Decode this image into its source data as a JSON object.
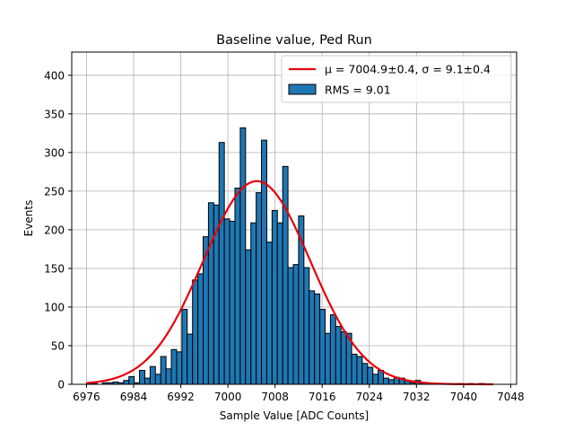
{
  "chart_data": {
    "type": "bar",
    "title": "Baseline value, Ped Run",
    "xlabel": "Sample Value [ADC Counts]",
    "ylabel": "Events",
    "xlim": [
      6973.5,
      7049
    ],
    "ylim": [
      0,
      430
    ],
    "grid": true,
    "legend_placement": "top-right",
    "xticks": [
      6976,
      6984,
      6992,
      7000,
      7008,
      7016,
      7024,
      7032,
      7040,
      7048
    ],
    "yticks": [
      0,
      50,
      100,
      150,
      200,
      250,
      300,
      350,
      400
    ],
    "bar_color": "#1f77b4",
    "bar_edge_color": "#000000",
    "fit_color": "#e8000b",
    "bin_width": 0.9,
    "bins": [
      {
        "x": 6976.0,
        "count": 1
      },
      {
        "x": 6976.9,
        "count": 1
      },
      {
        "x": 6977.8,
        "count": 0
      },
      {
        "x": 6978.7,
        "count": 2
      },
      {
        "x": 6979.6,
        "count": 2
      },
      {
        "x": 6980.5,
        "count": 3
      },
      {
        "x": 6981.4,
        "count": 2
      },
      {
        "x": 6982.3,
        "count": 5
      },
      {
        "x": 6983.2,
        "count": 10
      },
      {
        "x": 6984.1,
        "count": 2
      },
      {
        "x": 6985.0,
        "count": 18
      },
      {
        "x": 6985.9,
        "count": 8
      },
      {
        "x": 6986.8,
        "count": 23
      },
      {
        "x": 6987.7,
        "count": 13
      },
      {
        "x": 6988.6,
        "count": 36
      },
      {
        "x": 6989.5,
        "count": 20
      },
      {
        "x": 6990.4,
        "count": 45
      },
      {
        "x": 6991.3,
        "count": 42
      },
      {
        "x": 6992.2,
        "count": 97
      },
      {
        "x": 6993.1,
        "count": 65
      },
      {
        "x": 6994.0,
        "count": 135
      },
      {
        "x": 6994.9,
        "count": 143
      },
      {
        "x": 6995.8,
        "count": 191
      },
      {
        "x": 6996.7,
        "count": 235
      },
      {
        "x": 6997.6,
        "count": 232
      },
      {
        "x": 6998.5,
        "count": 313
      },
      {
        "x": 6999.4,
        "count": 214
      },
      {
        "x": 7000.3,
        "count": 211
      },
      {
        "x": 7001.2,
        "count": 254
      },
      {
        "x": 7002.1,
        "count": 332
      },
      {
        "x": 7003.0,
        "count": 174
      },
      {
        "x": 7003.9,
        "count": 209
      },
      {
        "x": 7004.8,
        "count": 248
      },
      {
        "x": 7005.7,
        "count": 316
      },
      {
        "x": 7006.6,
        "count": 184
      },
      {
        "x": 7007.5,
        "count": 225
      },
      {
        "x": 7008.4,
        "count": 209
      },
      {
        "x": 7009.3,
        "count": 282
      },
      {
        "x": 7010.2,
        "count": 151
      },
      {
        "x": 7011.1,
        "count": 155
      },
      {
        "x": 7012.0,
        "count": 218
      },
      {
        "x": 7012.9,
        "count": 151
      },
      {
        "x": 7013.8,
        "count": 121
      },
      {
        "x": 7014.7,
        "count": 117
      },
      {
        "x": 7015.6,
        "count": 97
      },
      {
        "x": 7016.5,
        "count": 66
      },
      {
        "x": 7017.4,
        "count": 90
      },
      {
        "x": 7018.3,
        "count": 75
      },
      {
        "x": 7019.2,
        "count": 68
      },
      {
        "x": 7020.1,
        "count": 66
      },
      {
        "x": 7021.0,
        "count": 39
      },
      {
        "x": 7021.9,
        "count": 36
      },
      {
        "x": 7022.8,
        "count": 27
      },
      {
        "x": 7023.7,
        "count": 22
      },
      {
        "x": 7024.6,
        "count": 13
      },
      {
        "x": 7025.5,
        "count": 18
      },
      {
        "x": 7026.4,
        "count": 8
      },
      {
        "x": 7027.3,
        "count": 6
      },
      {
        "x": 7028.2,
        "count": 9
      },
      {
        "x": 7029.1,
        "count": 8
      },
      {
        "x": 7030.0,
        "count": 5
      },
      {
        "x": 7030.9,
        "count": 2
      },
      {
        "x": 7031.8,
        "count": 5
      },
      {
        "x": 7032.7,
        "count": 2
      },
      {
        "x": 7033.6,
        "count": 1
      },
      {
        "x": 7034.5,
        "count": 1
      },
      {
        "x": 7035.4,
        "count": 0
      },
      {
        "x": 7036.3,
        "count": 1
      },
      {
        "x": 7037.2,
        "count": 0
      },
      {
        "x": 7038.1,
        "count": 0
      },
      {
        "x": 7039.0,
        "count": 1
      },
      {
        "x": 7039.9,
        "count": 0
      },
      {
        "x": 7040.8,
        "count": 1
      },
      {
        "x": 7041.7,
        "count": 0
      },
      {
        "x": 7042.6,
        "count": 1
      },
      {
        "x": 7043.5,
        "count": 0
      }
    ],
    "fit": {
      "type": "gaussian",
      "mu": 7004.9,
      "sigma": 9.1,
      "amplitude": 263,
      "x_range": [
        6976,
        7045
      ]
    },
    "legend": {
      "fit_mu_label": "μ = 7004.9±0.4, ",
      "fit_sigma_label": "σ = 9.1±0.4",
      "hist_label": "RMS = 9.01"
    }
  }
}
